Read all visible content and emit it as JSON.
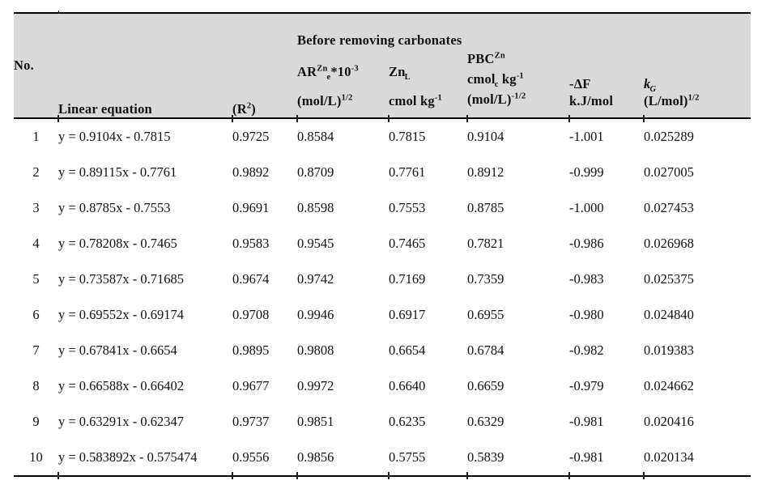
{
  "table": {
    "colors": {
      "header_background": "#d9d9d9",
      "rule": "#000000",
      "text": "#111111"
    },
    "header": {
      "no": "No.",
      "linear_equation": "Linear equation",
      "r2": {
        "pre": "(R",
        "sup": "2",
        "post": ")"
      },
      "group": "Before removing carbonates",
      "ar": {
        "base": "AR",
        "sup": "Zn",
        "sub": "e",
        "mult": "*10",
        "exp": "-3",
        "unit_pre": "(mol/L)",
        "unit_sup": "1/2"
      },
      "zn": {
        "base": "Zn",
        "sub": "L",
        "unit_pre": "cmol kg",
        "unit_sup": "-1"
      },
      "pbc": {
        "base": "PBC",
        "sup": "Zn",
        "unit1_pre": "cmol",
        "unit1_sub": "c",
        "unit1_post": " kg",
        "unit1_sup": "-1",
        "unit2_pre": "(mol/L)",
        "unit2_sup": "-1/2"
      },
      "delta_f": {
        "line1": "-ΔF",
        "line2": "k.J/mol"
      },
      "kg": {
        "base": "k",
        "sub": "G",
        "unit_pre": "(L/mol)",
        "unit_sup": "1/2"
      }
    },
    "rows": [
      {
        "no": "1",
        "equation": "y = 0.9104x - 0.7815",
        "r2": "0.9725",
        "ar": "0.8584",
        "zn": "0.7815",
        "pbc": "0.9104",
        "delta_f": "-1.001",
        "kg": "0.025289"
      },
      {
        "no": "2",
        "equation": "y = 0.89115x - 0.7761",
        "r2": "0.9892",
        "ar": "0.8709",
        "zn": "0.7761",
        "pbc": "0.8912",
        "delta_f": "-0.999",
        "kg": "0.027005"
      },
      {
        "no": "3",
        "equation": "y = 0.8785x - 0.7553",
        "r2": "0.9691",
        "ar": "0.8598",
        "zn": "0.7553",
        "pbc": "0.8785",
        "delta_f": "-1.000",
        "kg": "0.027453"
      },
      {
        "no": "4",
        "equation": "y = 0.78208x - 0.7465",
        "r2": "0.9583",
        "ar": "0.9545",
        "zn": "0.7465",
        "pbc": "0.7821",
        "delta_f": "-0.986",
        "kg": "0.026968"
      },
      {
        "no": "5",
        "equation": "y = 0.73587x - 0.71685",
        "r2": "0.9674",
        "ar": "0.9742",
        "zn": "0.7169",
        "pbc": "0.7359",
        "delta_f": "-0.983",
        "kg": "0.025375"
      },
      {
        "no": "6",
        "equation": "y = 0.69552x - 0.69174",
        "r2": "0.9708",
        "ar": "0.9946",
        "zn": "0.6917",
        "pbc": "0.6955",
        "delta_f": "-0.980",
        "kg": "0.024840"
      },
      {
        "no": "7",
        "equation": "y = 0.67841x - 0.6654",
        "r2": "0.9895",
        "ar": "0.9808",
        "zn": "0.6654",
        "pbc": "0.6784",
        "delta_f": "-0.982",
        "kg": "0.019383"
      },
      {
        "no": "8",
        "equation": "y = 0.66588x - 0.66402",
        "r2": "0.9677",
        "ar": "0.9972",
        "zn": "0.6640",
        "pbc": "0.6659",
        "delta_f": "-0.979",
        "kg": "0.024662"
      },
      {
        "no": "9",
        "equation": "y = 0.63291x - 0.62347",
        "r2": "0.9737",
        "ar": "0.9851",
        "zn": "0.6235",
        "pbc": "0.6329",
        "delta_f": "-0.981",
        "kg": "0.020416"
      },
      {
        "no": "10",
        "equation": "y = 0.583892x - 0.575474",
        "r2": "0.9556",
        "ar": "0.9856",
        "zn": "0.5755",
        "pbc": "0.5839",
        "delta_f": "-0.981",
        "kg": "0.020134"
      }
    ]
  }
}
